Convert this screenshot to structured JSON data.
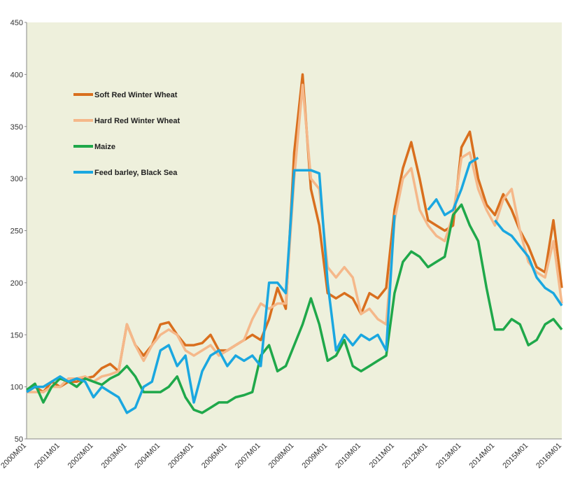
{
  "chart_data": {
    "type": "line",
    "categories": [
      "2000M01",
      null,
      null,
      null,
      "2001M01",
      null,
      null,
      null,
      "2002M01",
      null,
      null,
      null,
      "2003M01",
      null,
      null,
      null,
      "2004M01",
      null,
      null,
      null,
      "2005M01",
      null,
      null,
      null,
      "2006M01",
      null,
      null,
      null,
      "2007M01",
      null,
      null,
      null,
      "2008M01",
      null,
      null,
      null,
      "2009M01",
      null,
      null,
      null,
      "2010M01",
      null,
      null,
      null,
      "2011M01",
      null,
      null,
      null,
      "2012M01",
      null,
      null,
      null,
      "2013M01",
      null,
      null,
      null,
      "2014M01",
      null,
      null,
      null,
      "2015M01",
      null,
      null,
      null,
      "2016M01"
    ],
    "series": [
      {
        "name": "Soft Red Winter Wheat",
        "color": "#d96f1e",
        "values": [
          95,
          100,
          95,
          105,
          100,
          105,
          105,
          108,
          110,
          118,
          122,
          115,
          160,
          140,
          130,
          140,
          160,
          162,
          150,
          140,
          140,
          142,
          150,
          135,
          135,
          140,
          145,
          150,
          145,
          165,
          195,
          175,
          325,
          400,
          290,
          255,
          190,
          185,
          190,
          185,
          170,
          190,
          185,
          195,
          270,
          310,
          335,
          300,
          260,
          255,
          250,
          255,
          330,
          345,
          300,
          275,
          265,
          285,
          270,
          250,
          235,
          215,
          210,
          260,
          195
        ]
      },
      {
        "name": "Hard Red Winter Wheat",
        "color": "#f5b88a",
        "values": [
          95,
          95,
          95,
          100,
          100,
          108,
          108,
          110,
          105,
          110,
          112,
          115,
          160,
          140,
          125,
          140,
          150,
          155,
          150,
          135,
          130,
          135,
          140,
          130,
          135,
          140,
          145,
          165,
          180,
          175,
          180,
          180,
          300,
          390,
          300,
          290,
          215,
          205,
          215,
          205,
          170,
          175,
          165,
          160,
          260,
          300,
          310,
          270,
          255,
          245,
          240,
          265,
          320,
          325,
          290,
          270,
          255,
          280,
          290,
          250,
          220,
          210,
          205,
          240,
          180
        ]
      },
      {
        "name": "Maize",
        "color": "#1fa84a",
        "values": [
          97,
          103,
          85,
          100,
          108,
          105,
          100,
          108,
          105,
          102,
          108,
          112,
          120,
          110,
          95,
          95,
          95,
          100,
          110,
          90,
          78,
          75,
          80,
          85,
          85,
          90,
          92,
          95,
          130,
          140,
          115,
          120,
          140,
          160,
          185,
          160,
          125,
          130,
          145,
          120,
          115,
          120,
          125,
          130,
          190,
          220,
          230,
          225,
          215,
          220,
          225,
          265,
          275,
          255,
          240,
          195,
          155,
          155,
          165,
          160,
          140,
          145,
          160,
          165,
          155
        ]
      },
      {
        "name": "Feed barley, Black Sea",
        "color": "#1aa7e0",
        "values": [
          95,
          100,
          100,
          105,
          110,
          105,
          108,
          105,
          90,
          100,
          95,
          90,
          75,
          80,
          100,
          105,
          135,
          140,
          120,
          130,
          85,
          115,
          130,
          135,
          120,
          130,
          125,
          130,
          120,
          200,
          200,
          190,
          308,
          308,
          308,
          305,
          200,
          135,
          150,
          140,
          150,
          145,
          150,
          135,
          265,
          null,
          null,
          null,
          270,
          280,
          265,
          270,
          290,
          315,
          320,
          null,
          260,
          250,
          245,
          235,
          225,
          205,
          195,
          190,
          178
        ]
      }
    ],
    "ylim": [
      50,
      450
    ],
    "yticks": [
      50,
      100,
      150,
      200,
      250,
      300,
      350,
      400,
      450
    ],
    "legend": "upper left",
    "grid": false,
    "background": "#eef0dc"
  }
}
